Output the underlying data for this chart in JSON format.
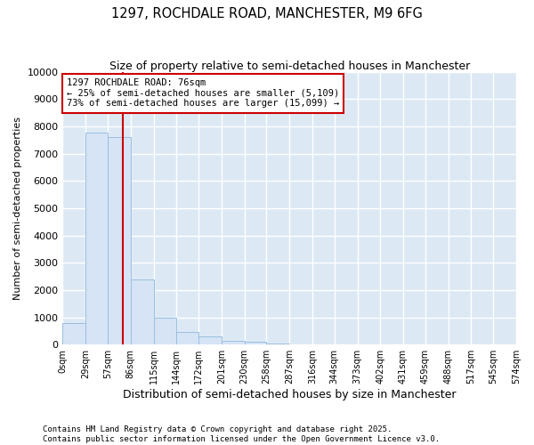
{
  "title": "1297, ROCHDALE ROAD, MANCHESTER, M9 6FG",
  "subtitle": "Size of property relative to semi-detached houses in Manchester",
  "xlabel": "Distribution of semi-detached houses by size in Manchester",
  "ylabel": "Number of semi-detached properties",
  "bar_color": "#d6e4f5",
  "bar_edge_color": "#9bbfe0",
  "annotation_box_color": "#cc0000",
  "annotation_line_color": "#cc0000",
  "property_size": 76,
  "annotation_text_line1": "1297 ROCHDALE ROAD: 76sqm",
  "annotation_text_line2": "← 25% of semi-detached houses are smaller (5,109)",
  "annotation_text_line3": "73% of semi-detached houses are larger (15,099) →",
  "copyright_text": "Contains HM Land Registry data © Crown copyright and database right 2025.\nContains public sector information licensed under the Open Government Licence v3.0.",
  "bin_edges": [
    0,
    29,
    57,
    86,
    115,
    144,
    172,
    201,
    230,
    258,
    287,
    316,
    344,
    373,
    402,
    431,
    459,
    488,
    517,
    545,
    574
  ],
  "bin_labels": [
    "0sqm",
    "29sqm",
    "57sqm",
    "86sqm",
    "115sqm",
    "144sqm",
    "172sqm",
    "201sqm",
    "230sqm",
    "258sqm",
    "287sqm",
    "316sqm",
    "344sqm",
    "373sqm",
    "402sqm",
    "431sqm",
    "459sqm",
    "488sqm",
    "517sqm",
    "545sqm",
    "574sqm"
  ],
  "bar_heights": [
    790,
    7780,
    7590,
    2390,
    1000,
    470,
    295,
    130,
    100,
    55,
    10,
    0,
    0,
    0,
    0,
    0,
    0,
    0,
    0,
    0
  ],
  "ylim": [
    0,
    10000
  ],
  "yticks": [
    0,
    1000,
    2000,
    3000,
    4000,
    5000,
    6000,
    7000,
    8000,
    9000,
    10000
  ],
  "background_color": "#ffffff",
  "plot_bg_color": "#dce9f5",
  "grid_color": "#ffffff",
  "title_fontsize": 10.5,
  "subtitle_fontsize": 9
}
